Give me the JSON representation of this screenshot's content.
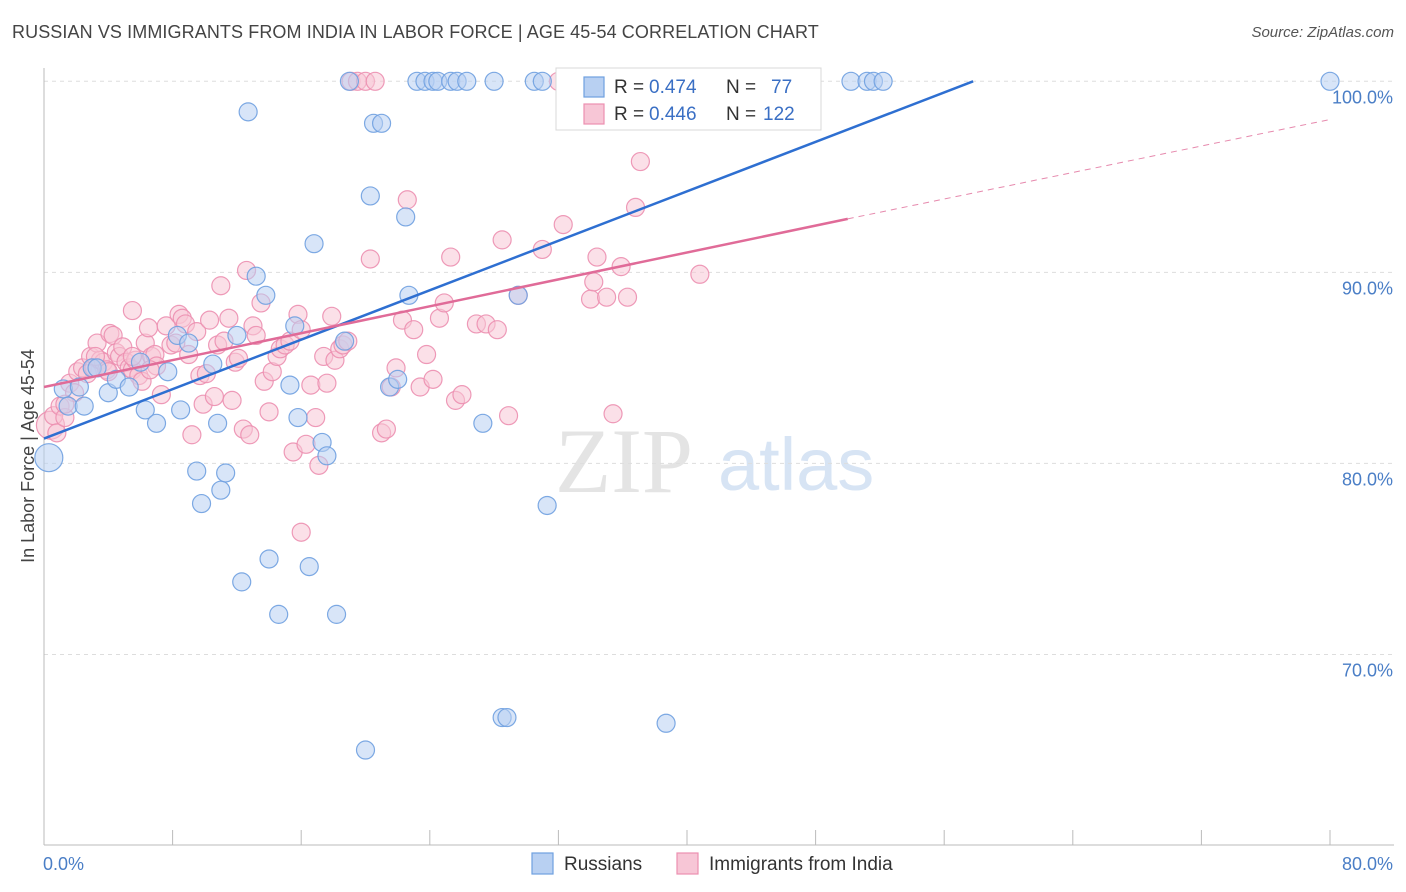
{
  "header": {
    "title": "RUSSIAN VS IMMIGRANTS FROM INDIA IN LABOR FORCE | AGE 45-54 CORRELATION CHART",
    "source": "Source: ZipAtlas.com"
  },
  "watermark": {
    "zip": "ZIP",
    "atlas": "atlas"
  },
  "colors": {
    "russians": "#6fa0e0",
    "russians_fill": "#b8d0f2",
    "russians_line": "#2e6fd1",
    "india": "#ec8fb0",
    "india_fill": "#f7c6d6",
    "india_line": "#e06b98",
    "grid": "#dddddd",
    "tick_label": "#4a7ec6"
  },
  "legend": {
    "rows": [
      {
        "r_label": "R =",
        "r_value": "0.474",
        "n_label": "N =",
        "n_value": "77"
      },
      {
        "r_label": "R =",
        "r_value": "0.446",
        "n_label": "N =",
        "n_value": "122"
      }
    ]
  },
  "bottom_legend": {
    "items": [
      "Russians",
      "Immigrants from India"
    ]
  },
  "chart_data": {
    "type": "scatter",
    "title": "RUSSIAN VS IMMIGRANTS FROM INDIA IN LABOR FORCE | AGE 45-54 CORRELATION CHART",
    "xlabel": "",
    "ylabel": "In Labor Force | Age 45-54",
    "xlim": [
      0,
      80
    ],
    "ylim": [
      61,
      101.5
    ],
    "x_tick_labels": [
      "0.0%",
      "80.0%"
    ],
    "y_ticks": [
      70,
      80,
      90,
      100
    ],
    "y_tick_labels": [
      "70.0%",
      "80.0%",
      "90.0%",
      "100.0%"
    ],
    "grid": "horizontal dashed",
    "legend_position": "top-center",
    "series": [
      {
        "name": "Russians",
        "r": 0.474,
        "n": 77,
        "trend": {
          "x": [
            0,
            57.8
          ],
          "y": [
            81.3,
            100.0
          ]
        },
        "points": [
          [
            0.3,
            80.3
          ],
          [
            1.2,
            83.9
          ],
          [
            1.5,
            83.0
          ],
          [
            2.2,
            84.0
          ],
          [
            2.5,
            83.0
          ],
          [
            3.0,
            85.0
          ],
          [
            3.3,
            85.0
          ],
          [
            4.0,
            83.7
          ],
          [
            4.5,
            84.4
          ],
          [
            5.3,
            84.0
          ],
          [
            6.0,
            85.3
          ],
          [
            6.3,
            82.8
          ],
          [
            7.0,
            82.1
          ],
          [
            7.7,
            84.8
          ],
          [
            8.3,
            86.7
          ],
          [
            8.5,
            82.8
          ],
          [
            9.0,
            86.3
          ],
          [
            9.5,
            79.6
          ],
          [
            9.8,
            77.9
          ],
          [
            10.5,
            85.2
          ],
          [
            11.0,
            78.6
          ],
          [
            11.3,
            79.5
          ],
          [
            12.0,
            86.7
          ],
          [
            12.3,
            73.8
          ],
          [
            12.7,
            98.4
          ],
          [
            13.2,
            89.8
          ],
          [
            13.8,
            88.8
          ],
          [
            14.0,
            75.0
          ],
          [
            14.6,
            72.1
          ],
          [
            15.3,
            84.1
          ],
          [
            15.6,
            87.2
          ],
          [
            15.8,
            82.4
          ],
          [
            16.5,
            74.6
          ],
          [
            16.8,
            91.5
          ],
          [
            17.3,
            81.1
          ],
          [
            17.6,
            80.4
          ],
          [
            18.2,
            72.1
          ],
          [
            18.7,
            86.4
          ],
          [
            19.0,
            100.0
          ],
          [
            20.0,
            65.0
          ],
          [
            20.3,
            94.0
          ],
          [
            20.5,
            97.8
          ],
          [
            21.0,
            97.8
          ],
          [
            21.5,
            84.0
          ],
          [
            22.0,
            84.4
          ],
          [
            22.5,
            92.9
          ],
          [
            22.7,
            88.8
          ],
          [
            23.2,
            100.0
          ],
          [
            23.7,
            100.0
          ],
          [
            24.2,
            100.0
          ],
          [
            24.5,
            100.0
          ],
          [
            25.3,
            100.0
          ],
          [
            25.7,
            100.0
          ],
          [
            26.3,
            100.0
          ],
          [
            27.3,
            82.1
          ],
          [
            28.0,
            100.0
          ],
          [
            28.5,
            66.7
          ],
          [
            28.8,
            66.7
          ],
          [
            29.5,
            88.8
          ],
          [
            30.5,
            100.0
          ],
          [
            31.0,
            100.0
          ],
          [
            31.3,
            77.8
          ],
          [
            32.5,
            100.0
          ],
          [
            33.5,
            100.0
          ],
          [
            36.2,
            100.0
          ],
          [
            36.8,
            100.0
          ],
          [
            37.5,
            100.0
          ],
          [
            38.7,
            66.4
          ],
          [
            40.0,
            100.0
          ],
          [
            41.0,
            100.0
          ],
          [
            44.2,
            100.0
          ],
          [
            50.2,
            100.0
          ],
          [
            51.2,
            100.0
          ],
          [
            51.6,
            100.0
          ],
          [
            52.2,
            100.0
          ],
          [
            80.0,
            100.0
          ],
          [
            10.8,
            82.1
          ]
        ]
      },
      {
        "name": "Immigrants from India",
        "r": 0.446,
        "n": 122,
        "trend": {
          "x": [
            0,
            50.0
          ],
          "y": [
            84.0,
            92.8
          ]
        },
        "trend_extension": {
          "x": [
            50.0,
            80.0
          ],
          "y": [
            92.8,
            98.0
          ]
        },
        "points": [
          [
            0.4,
            82.0
          ],
          [
            0.6,
            82.5
          ],
          [
            0.8,
            81.6
          ],
          [
            1.0,
            83.0
          ],
          [
            1.3,
            82.4
          ],
          [
            1.6,
            84.2
          ],
          [
            1.9,
            83.7
          ],
          [
            2.1,
            84.8
          ],
          [
            2.4,
            85.0
          ],
          [
            2.7,
            84.7
          ],
          [
            2.9,
            85.6
          ],
          [
            3.1,
            85.0
          ],
          [
            3.3,
            86.3
          ],
          [
            3.5,
            85.4
          ],
          [
            3.7,
            85.3
          ],
          [
            3.9,
            84.9
          ],
          [
            4.1,
            86.8
          ],
          [
            4.3,
            86.7
          ],
          [
            4.5,
            85.8
          ],
          [
            4.7,
            85.6
          ],
          [
            4.9,
            86.1
          ],
          [
            5.1,
            85.3
          ],
          [
            5.3,
            85.0
          ],
          [
            5.5,
            84.9
          ],
          [
            5.7,
            85.4
          ],
          [
            5.9,
            84.6
          ],
          [
            6.1,
            84.3
          ],
          [
            6.3,
            86.3
          ],
          [
            6.5,
            87.1
          ],
          [
            6.7,
            85.6
          ],
          [
            6.9,
            85.7
          ],
          [
            5.5,
            85.6
          ],
          [
            5.5,
            88.0
          ],
          [
            7.0,
            85.1
          ],
          [
            7.3,
            83.6
          ],
          [
            7.6,
            87.2
          ],
          [
            7.9,
            86.2
          ],
          [
            8.2,
            86.3
          ],
          [
            8.4,
            87.8
          ],
          [
            8.6,
            87.6
          ],
          [
            8.8,
            87.3
          ],
          [
            9.0,
            85.7
          ],
          [
            9.2,
            81.5
          ],
          [
            9.5,
            86.9
          ],
          [
            9.7,
            84.6
          ],
          [
            9.9,
            83.1
          ],
          [
            10.1,
            84.7
          ],
          [
            10.3,
            87.5
          ],
          [
            10.6,
            83.5
          ],
          [
            10.8,
            86.2
          ],
          [
            11.0,
            89.3
          ],
          [
            11.2,
            86.4
          ],
          [
            11.5,
            87.6
          ],
          [
            11.7,
            83.3
          ],
          [
            11.9,
            85.3
          ],
          [
            12.1,
            85.5
          ],
          [
            12.4,
            81.8
          ],
          [
            12.6,
            90.1
          ],
          [
            12.8,
            81.5
          ],
          [
            13.0,
            87.2
          ],
          [
            13.2,
            86.7
          ],
          [
            13.5,
            88.4
          ],
          [
            13.7,
            84.3
          ],
          [
            14.0,
            82.7
          ],
          [
            14.2,
            84.8
          ],
          [
            14.5,
            85.6
          ],
          [
            14.7,
            86.0
          ],
          [
            15.0,
            86.2
          ],
          [
            15.3,
            86.4
          ],
          [
            15.5,
            80.6
          ],
          [
            15.8,
            87.8
          ],
          [
            16.0,
            87.0
          ],
          [
            16.3,
            81.0
          ],
          [
            16.6,
            84.1
          ],
          [
            16.9,
            82.4
          ],
          [
            17.1,
            79.9
          ],
          [
            17.4,
            85.6
          ],
          [
            17.6,
            84.2
          ],
          [
            17.9,
            87.7
          ],
          [
            18.1,
            85.4
          ],
          [
            18.4,
            86.0
          ],
          [
            18.6,
            86.2
          ],
          [
            18.9,
            86.4
          ],
          [
            19.1,
            100.0
          ],
          [
            19.5,
            100.0
          ],
          [
            20.0,
            100.0
          ],
          [
            20.3,
            90.7
          ],
          [
            20.6,
            100.0
          ],
          [
            21.0,
            81.6
          ],
          [
            21.3,
            81.8
          ],
          [
            21.6,
            84.0
          ],
          [
            21.9,
            85.0
          ],
          [
            22.3,
            87.5
          ],
          [
            22.6,
            93.8
          ],
          [
            23.0,
            87.0
          ],
          [
            23.4,
            84.0
          ],
          [
            23.8,
            85.7
          ],
          [
            24.2,
            84.4
          ],
          [
            24.6,
            87.6
          ],
          [
            24.9,
            88.4
          ],
          [
            25.3,
            90.8
          ],
          [
            25.6,
            83.3
          ],
          [
            26.0,
            83.6
          ],
          [
            26.9,
            87.3
          ],
          [
            27.5,
            87.3
          ],
          [
            28.2,
            87.0
          ],
          [
            28.5,
            91.7
          ],
          [
            28.9,
            82.5
          ],
          [
            29.5,
            88.8
          ],
          [
            31.0,
            91.2
          ],
          [
            32.0,
            100.0
          ],
          [
            32.3,
            92.5
          ],
          [
            34.0,
            88.6
          ],
          [
            34.2,
            89.5
          ],
          [
            34.4,
            90.8
          ],
          [
            35.0,
            88.7
          ],
          [
            35.4,
            82.6
          ],
          [
            35.9,
            90.3
          ],
          [
            36.3,
            88.7
          ],
          [
            36.8,
            93.4
          ],
          [
            37.1,
            95.8
          ],
          [
            40.8,
            89.9
          ],
          [
            16.0,
            76.4
          ],
          [
            1.3,
            83.1
          ],
          [
            4.0,
            84.8
          ],
          [
            3.2,
            85.6
          ],
          [
            6.6,
            84.9
          ]
        ]
      }
    ]
  }
}
